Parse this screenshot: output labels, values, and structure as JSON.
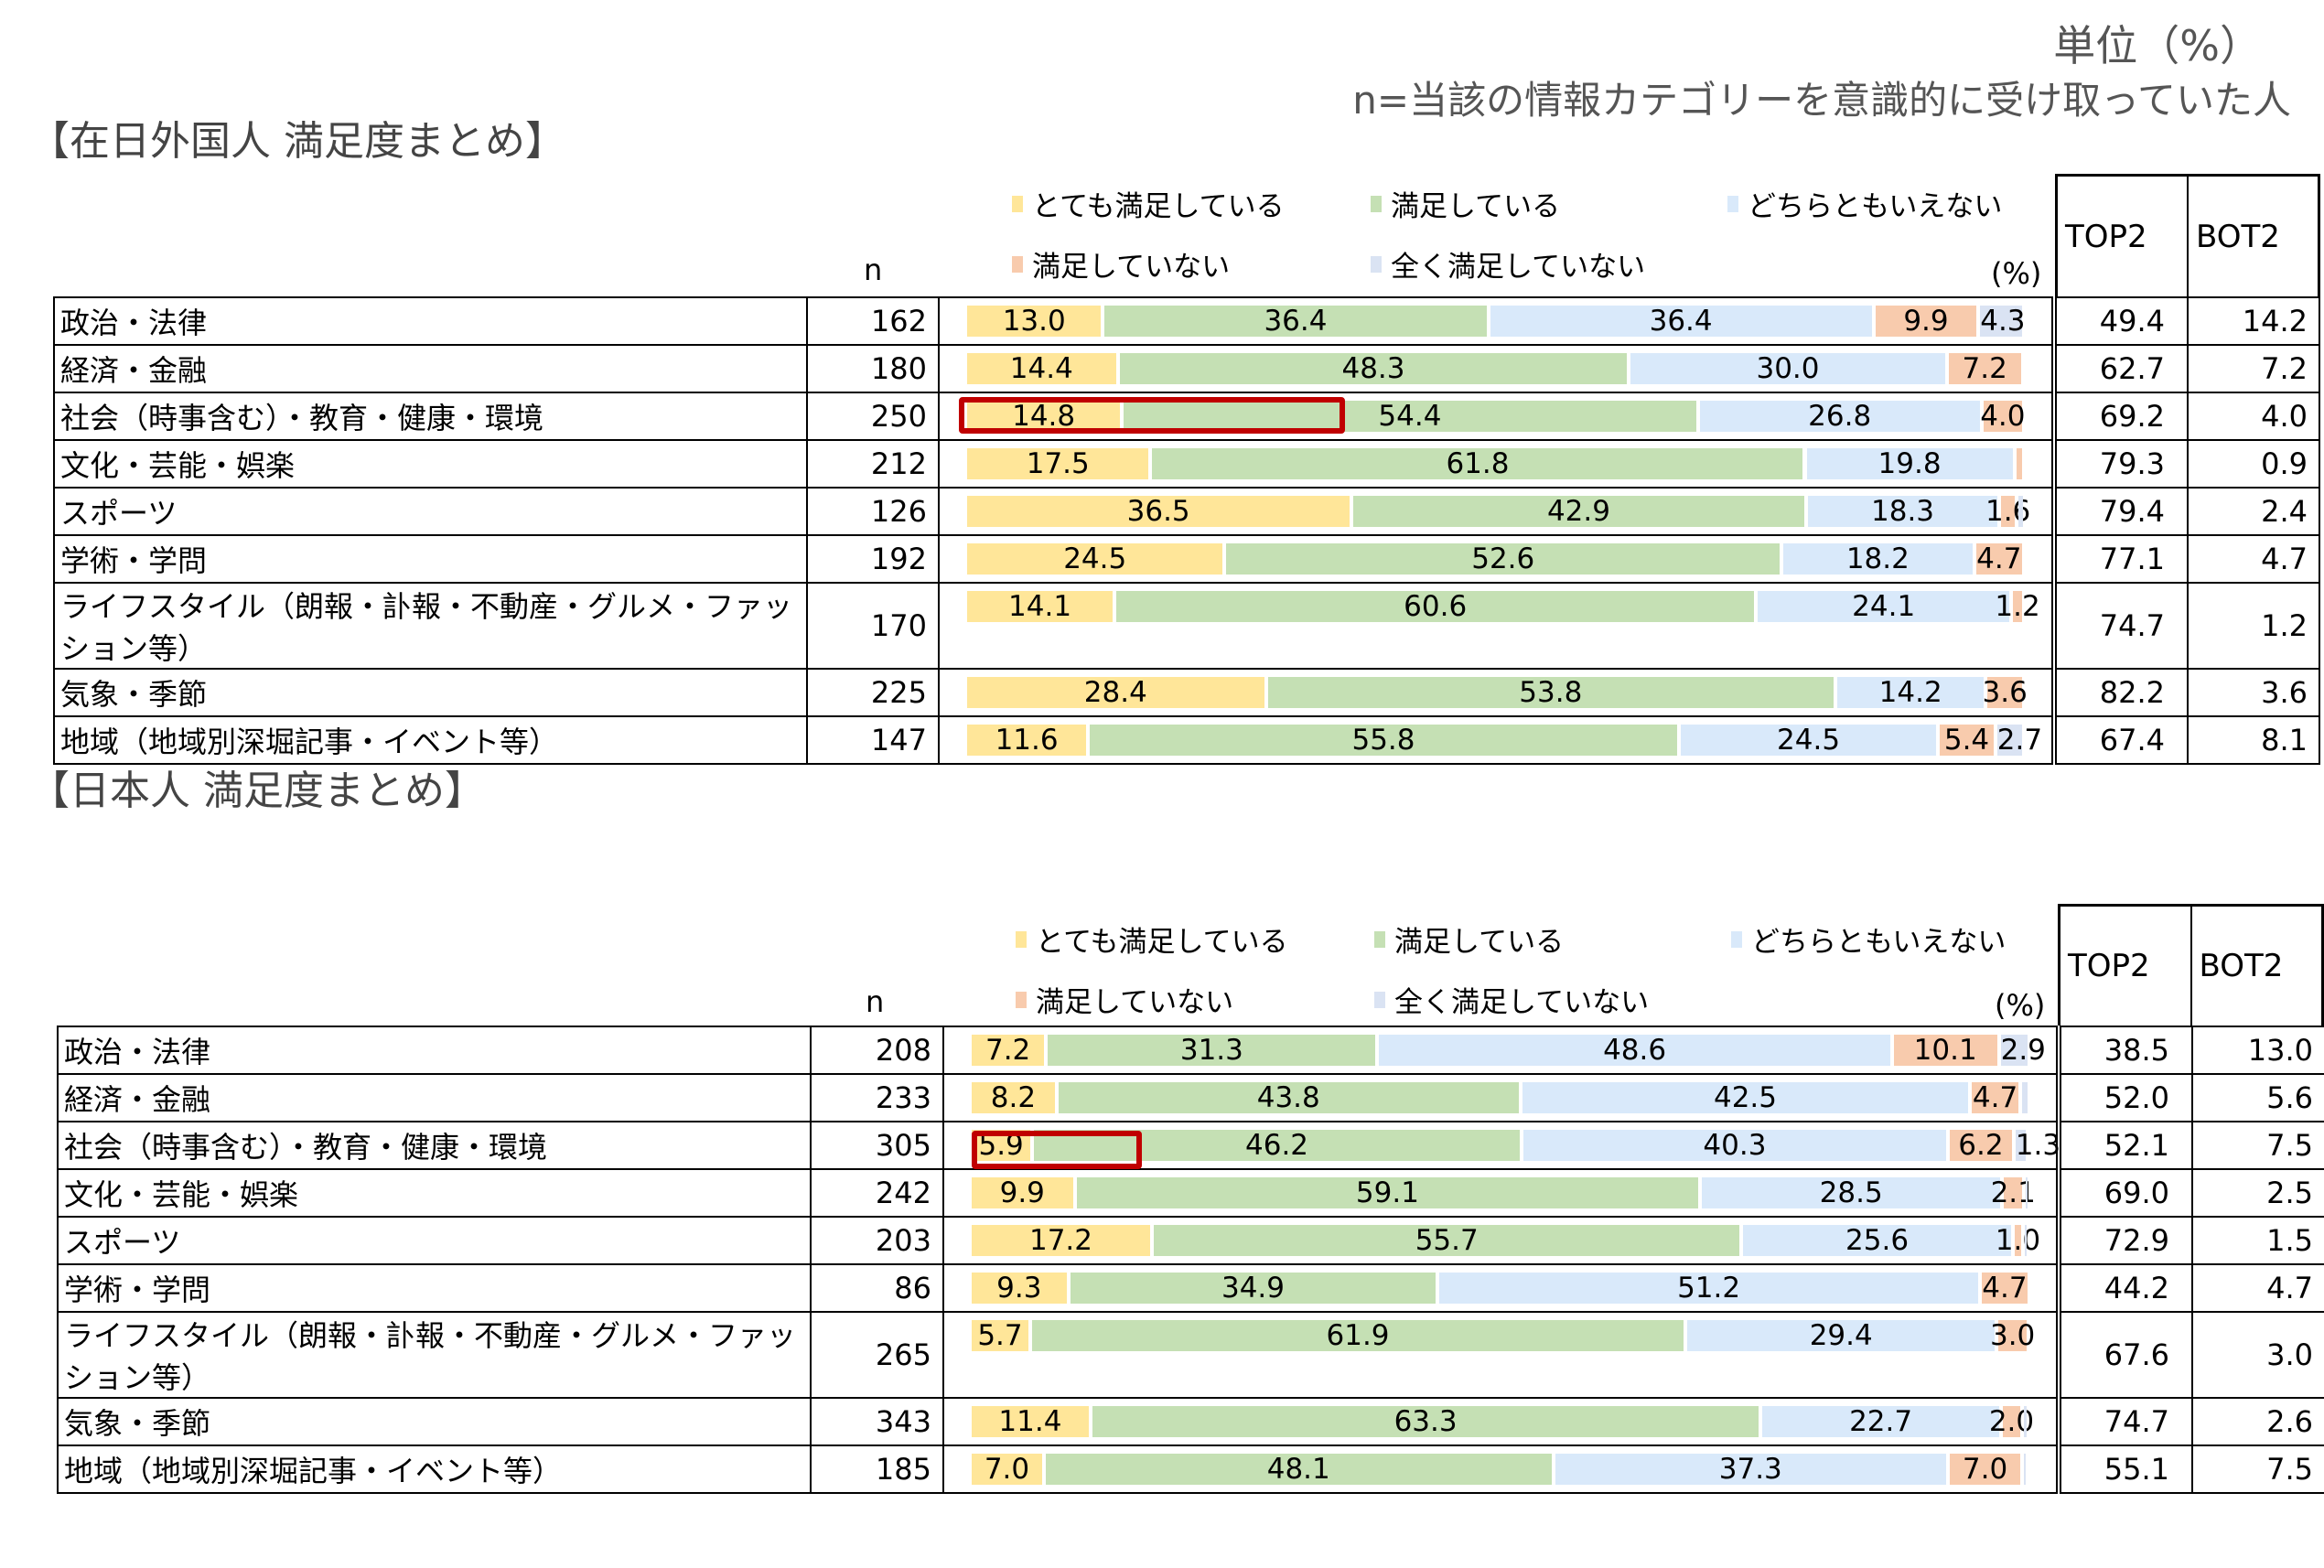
{
  "header": {
    "unit": "単位（%）",
    "n_note": "n=当該の情報カテゴリーを意識的に受け取っていた人"
  },
  "colors": {
    "very_satisfied": "#FFE699",
    "satisfied": "#C5E0B4",
    "neutral": "#D9E9FA",
    "dissatisfied": "#F8CBAD",
    "very_dissatisfied": "#DAE3F3",
    "highlight": "#C00000"
  },
  "chart_data": [
    {
      "type": "bar",
      "title": "【在日外国人 満足度まとめ】",
      "stacked": true,
      "orientation": "horizontal",
      "xlim": [
        0,
        100
      ],
      "legend": [
        "とても満足している",
        "満足している",
        "どちらともいえない",
        "満足していない",
        "全く満足していない"
      ],
      "n_label": "n",
      "pct_label": "(%)",
      "top2_label": "TOP2",
      "bot2_label": "BOT2",
      "categories": [
        "政治・法律",
        "経済・金融",
        "社会（時事含む）・教育・健康・環境",
        "文化・芸能・娯楽",
        "スポーツ",
        "学術・学問",
        "ライフスタイル（朗報・訃報・不動産・グルメ・ファッション等）",
        "気象・季節",
        "地域（地域別深堀記事・イベント等）"
      ],
      "n": [
        162,
        180,
        250,
        212,
        126,
        192,
        170,
        225,
        147
      ],
      "series": [
        {
          "name": "とても満足している",
          "values": [
            13.0,
            14.4,
            14.8,
            17.5,
            36.5,
            24.5,
            14.1,
            28.4,
            11.6
          ]
        },
        {
          "name": "満足している",
          "values": [
            36.4,
            48.3,
            54.4,
            61.8,
            42.9,
            52.6,
            60.6,
            53.8,
            55.8
          ]
        },
        {
          "name": "どちらともいえない",
          "values": [
            36.4,
            30.0,
            26.8,
            19.8,
            18.3,
            18.2,
            24.1,
            14.2,
            24.5
          ]
        },
        {
          "name": "満足していない",
          "values": [
            9.9,
            7.2,
            4.0,
            0.9,
            1.6,
            4.7,
            1.2,
            3.6,
            5.4
          ]
        },
        {
          "name": "全く満足していない",
          "values": [
            4.3,
            0,
            0,
            0,
            0.8,
            0,
            0,
            0,
            2.7
          ]
        }
      ],
      "top2": [
        "49.4",
        "62.7",
        "69.2",
        "79.3",
        "79.4",
        "77.1",
        "74.7",
        "82.2",
        "67.4"
      ],
      "bot2": [
        "14.2",
        "7.2",
        "4.0",
        "0.9",
        "2.4",
        "4.7",
        "1.2",
        "3.6",
        "8.1"
      ],
      "highlight_row": 2
    },
    {
      "type": "bar",
      "title": "【日本人 満足度まとめ】",
      "stacked": true,
      "orientation": "horizontal",
      "xlim": [
        0,
        100
      ],
      "legend": [
        "とても満足している",
        "満足している",
        "どちらともいえない",
        "満足していない",
        "全く満足していない"
      ],
      "n_label": "n",
      "pct_label": "(%)",
      "top2_label": "TOP2",
      "bot2_label": "BOT2",
      "categories": [
        "政治・法律",
        "経済・金融",
        "社会（時事含む）・教育・健康・環境",
        "文化・芸能・娯楽",
        "スポーツ",
        "学術・学問",
        "ライフスタイル（朗報・訃報・不動産・グルメ・ファッション等）",
        "気象・季節",
        "地域（地域別深堀記事・イベント等）"
      ],
      "n": [
        208,
        233,
        305,
        242,
        203,
        86,
        265,
        343,
        185
      ],
      "series": [
        {
          "name": "とても満足している",
          "values": [
            7.2,
            8.2,
            5.9,
            9.9,
            17.2,
            9.3,
            5.7,
            11.4,
            7.0
          ]
        },
        {
          "name": "満足している",
          "values": [
            31.3,
            43.8,
            46.2,
            59.1,
            55.7,
            34.9,
            61.9,
            63.3,
            48.1
          ]
        },
        {
          "name": "どちらともいえない",
          "values": [
            48.6,
            42.5,
            40.3,
            28.5,
            25.6,
            51.2,
            29.4,
            22.7,
            37.3
          ]
        },
        {
          "name": "満足していない",
          "values": [
            10.1,
            4.7,
            6.2,
            2.1,
            1.0,
            4.7,
            3.0,
            2.0,
            7.0
          ]
        },
        {
          "name": "全く満足していない",
          "values": [
            2.9,
            0.9,
            1.3,
            0.4,
            0.5,
            0,
            0,
            0.6,
            0.5
          ]
        }
      ],
      "top2": [
        "38.5",
        "52.0",
        "52.1",
        "69.0",
        "72.9",
        "44.2",
        "67.6",
        "74.7",
        "55.1"
      ],
      "bot2": [
        "13.0",
        "5.6",
        "7.5",
        "2.5",
        "1.5",
        "4.7",
        "3.0",
        "2.6",
        "7.5"
      ],
      "highlight_row": 2
    }
  ]
}
